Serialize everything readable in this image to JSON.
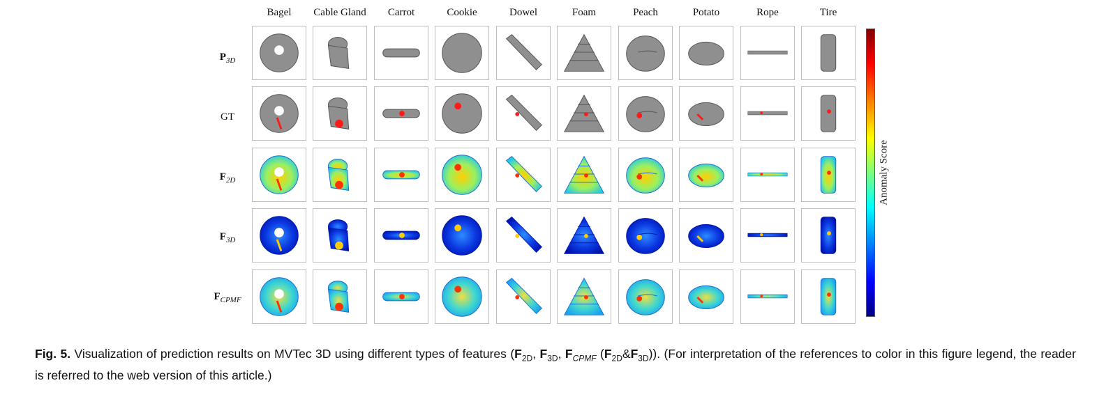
{
  "figure": {
    "columns": [
      "Bagel",
      "Cable Gland",
      "Carrot",
      "Cookie",
      "Dowel",
      "Foam",
      "Peach",
      "Potato",
      "Rope",
      "Tire"
    ],
    "rows": [
      {
        "base": "P",
        "sub": "3D"
      },
      {
        "base": "GT",
        "sub": ""
      },
      {
        "base": "F",
        "sub": "2D"
      },
      {
        "base": "F",
        "sub": "3D"
      },
      {
        "base": "F",
        "sub": "CPMF"
      }
    ],
    "colorbar_label": "Anomaly Score"
  },
  "caption": {
    "fig_label": "Fig. 5.",
    "text_1": " Visualization of prediction results on MVTec 3D using different types of features (",
    "f2d": "F",
    "sub_2d": "2D",
    "sep1": ", ",
    "f3d": "F",
    "sub_3d": "3D",
    "sep2": ", ",
    "fcpmf": "F",
    "sub_cpmf": "CPMF",
    "paren_open": " (",
    "f2d_b": "F",
    "sub_2d_b": "2D",
    "amp": "&",
    "f3d_b": "F",
    "sub_3d_b": "3D",
    "text_2": ")). (For interpretation of the references to color in this figure legend, the reader is referred to the web version of this article.)"
  }
}
